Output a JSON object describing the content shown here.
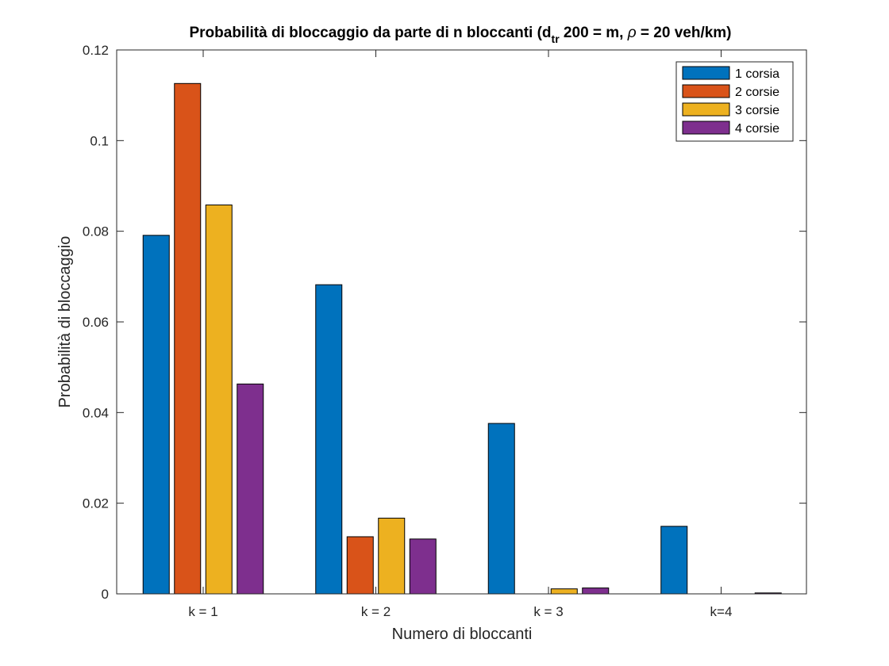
{
  "chart_data": {
    "type": "bar",
    "title_main": "Probabilità di bloccaggio da parte di n bloccanti (d",
    "title_sub": "tr",
    "title_rest": " 200 = m, ",
    "title_rho": "ρ",
    "title_end": " = 20 veh/km)",
    "xlabel": "Numero di bloccanti",
    "ylabel": "Probabilità di bloccaggio",
    "categories": [
      "k = 1",
      "k = 2",
      "k = 3",
      "k=4"
    ],
    "ylim": [
      0,
      0.12
    ],
    "yticks": [
      0,
      0.02,
      0.04,
      0.06,
      0.08,
      0.1,
      0.12
    ],
    "ytick_labels": [
      "0",
      "0.02",
      "0.04",
      "0.06",
      "0.08",
      "0.1",
      "0.12"
    ],
    "legend_position": "top-right",
    "series": [
      {
        "name": "1 corsia",
        "color": "#0072BD",
        "values": [
          0.0791,
          0.0682,
          0.0376,
          0.0149
        ]
      },
      {
        "name": "2 corsie",
        "color": "#D95319",
        "values": [
          0.1126,
          0.0126,
          0.0,
          0.0
        ]
      },
      {
        "name": "3 corsie",
        "color": "#EDB120",
        "values": [
          0.0858,
          0.0167,
          0.0011,
          0.0
        ]
      },
      {
        "name": "4 corsie",
        "color": "#7E2F8E",
        "values": [
          0.0463,
          0.0121,
          0.0013,
          0.0002
        ]
      }
    ]
  }
}
